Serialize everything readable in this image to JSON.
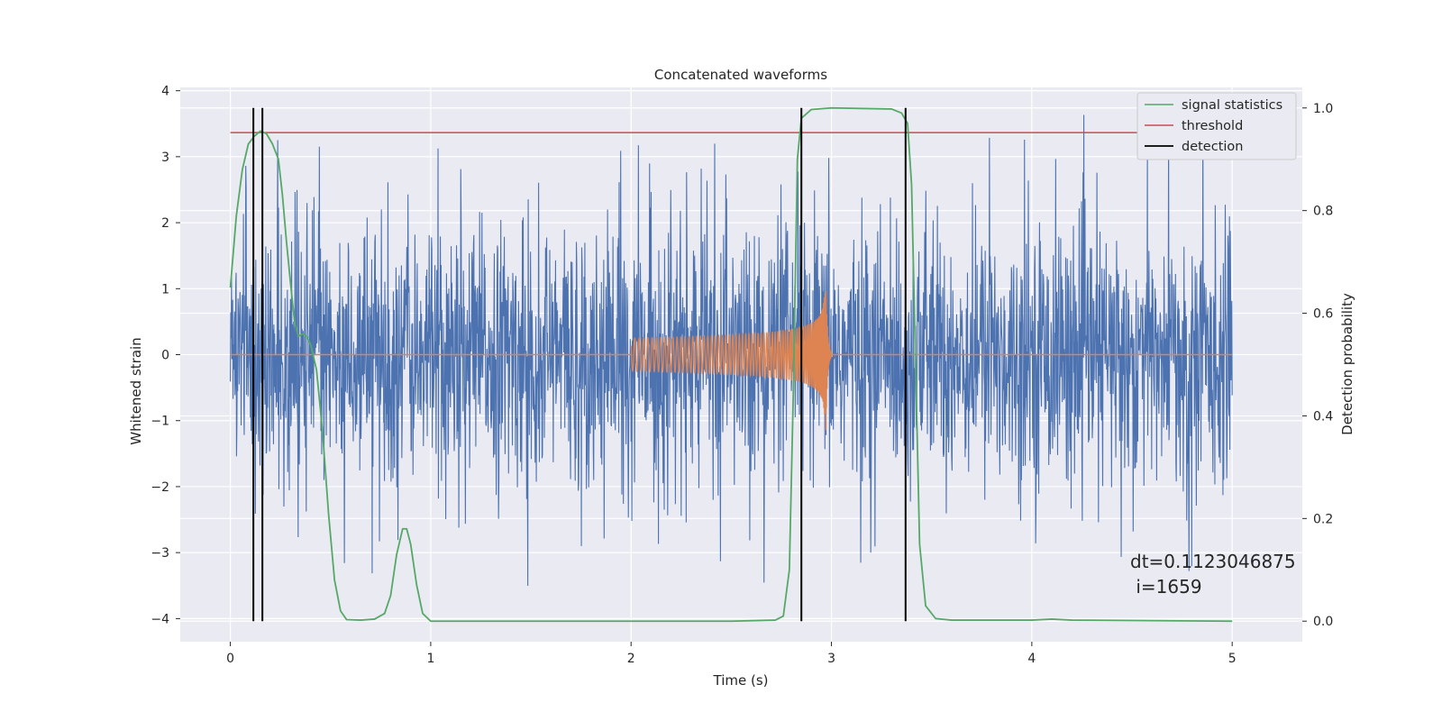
{
  "chart_data": {
    "type": "line",
    "title": "Concatenated waveforms",
    "xlabel": "Time (s)",
    "ylabel_left": "Whitened strain",
    "ylabel_right": "Detection probability",
    "xlim": [
      -0.25,
      5.35
    ],
    "ylim_left": [
      -4.35,
      4.05
    ],
    "ylim_right": [
      -0.04,
      1.04
    ],
    "xticks": [
      0,
      1,
      2,
      3,
      4,
      5
    ],
    "yticks_left": [
      -4,
      -3,
      -2,
      -1,
      0,
      1,
      2,
      3,
      4
    ],
    "yticks_right": [
      0.0,
      0.2,
      0.4,
      0.6,
      0.8,
      1.0
    ],
    "xtick_labels": [
      "0",
      "1",
      "2",
      "3",
      "4",
      "5"
    ],
    "ytick_labels_left": [
      "−4",
      "−3",
      "−2",
      "−1",
      "0",
      "1",
      "2",
      "3",
      "4"
    ],
    "ytick_labels_right": [
      "0.0",
      "0.2",
      "0.4",
      "0.6",
      "0.8",
      "1.0"
    ],
    "grid": true,
    "legend_position": "top-right",
    "legend": [
      {
        "name": "signal statistics",
        "color": "#55a868"
      },
      {
        "name": "threshold",
        "color": "#c44e52"
      },
      {
        "name": "detection",
        "color": "#000000"
      }
    ],
    "series": [
      {
        "name": "whitened strain noise",
        "axis": "left",
        "color": "#4c72b0",
        "x_range": [
          0,
          5
        ],
        "envelope": [
          -2.0,
          2.0
        ],
        "spike_max": 3.7,
        "spike_min": -3.9
      },
      {
        "name": "injected chirp",
        "axis": "left",
        "color": "#dd8452",
        "x_range": [
          2.0,
          3.0
        ],
        "start_amplitude": 0.25,
        "peak_amplitude": 1.5,
        "peak_time": 2.97
      },
      {
        "name": "signal statistics",
        "axis": "right",
        "color": "#55a868",
        "points": [
          [
            0.0,
            0.65
          ],
          [
            0.03,
            0.79
          ],
          [
            0.06,
            0.88
          ],
          [
            0.09,
            0.93
          ],
          [
            0.12,
            0.945
          ],
          [
            0.15,
            0.955
          ],
          [
            0.18,
            0.95
          ],
          [
            0.21,
            0.93
          ],
          [
            0.24,
            0.9
          ],
          [
            0.26,
            0.83
          ],
          [
            0.28,
            0.74
          ],
          [
            0.3,
            0.66
          ],
          [
            0.32,
            0.585
          ],
          [
            0.34,
            0.555
          ],
          [
            0.36,
            0.56
          ],
          [
            0.38,
            0.555
          ],
          [
            0.4,
            0.54
          ],
          [
            0.43,
            0.49
          ],
          [
            0.46,
            0.37
          ],
          [
            0.49,
            0.21
          ],
          [
            0.52,
            0.08
          ],
          [
            0.55,
            0.02
          ],
          [
            0.58,
            0.003
          ],
          [
            0.65,
            0.002
          ],
          [
            0.72,
            0.004
          ],
          [
            0.77,
            0.015
          ],
          [
            0.8,
            0.05
          ],
          [
            0.83,
            0.13
          ],
          [
            0.86,
            0.18
          ],
          [
            0.88,
            0.18
          ],
          [
            0.9,
            0.15
          ],
          [
            0.93,
            0.07
          ],
          [
            0.96,
            0.015
          ],
          [
            1.0,
            0.0
          ],
          [
            1.5,
            0.0
          ],
          [
            2.0,
            0.0
          ],
          [
            2.5,
            0.0
          ],
          [
            2.72,
            0.002
          ],
          [
            2.76,
            0.01
          ],
          [
            2.79,
            0.1
          ],
          [
            2.81,
            0.45
          ],
          [
            2.83,
            0.9
          ],
          [
            2.85,
            0.98
          ],
          [
            2.9,
            0.997
          ],
          [
            3.0,
            1.0
          ],
          [
            3.3,
            0.998
          ],
          [
            3.35,
            0.99
          ],
          [
            3.38,
            0.97
          ],
          [
            3.4,
            0.85
          ],
          [
            3.42,
            0.5
          ],
          [
            3.44,
            0.15
          ],
          [
            3.47,
            0.03
          ],
          [
            3.52,
            0.005
          ],
          [
            3.6,
            0.002
          ],
          [
            4.0,
            0.002
          ],
          [
            4.1,
            0.004
          ],
          [
            4.2,
            0.002
          ],
          [
            5.0,
            0.0
          ]
        ]
      },
      {
        "name": "threshold",
        "axis": "right",
        "color": "#c44e52",
        "points": [
          [
            0.0,
            0.952
          ],
          [
            5.0,
            0.952
          ]
        ]
      }
    ],
    "detections": [
      0.115,
      0.16,
      2.85,
      3.37
    ],
    "annotation": {
      "line1": "dt=0.1123046875",
      "line2": " i=1659",
      "x": 4.5,
      "y_top": -3.0
    }
  }
}
